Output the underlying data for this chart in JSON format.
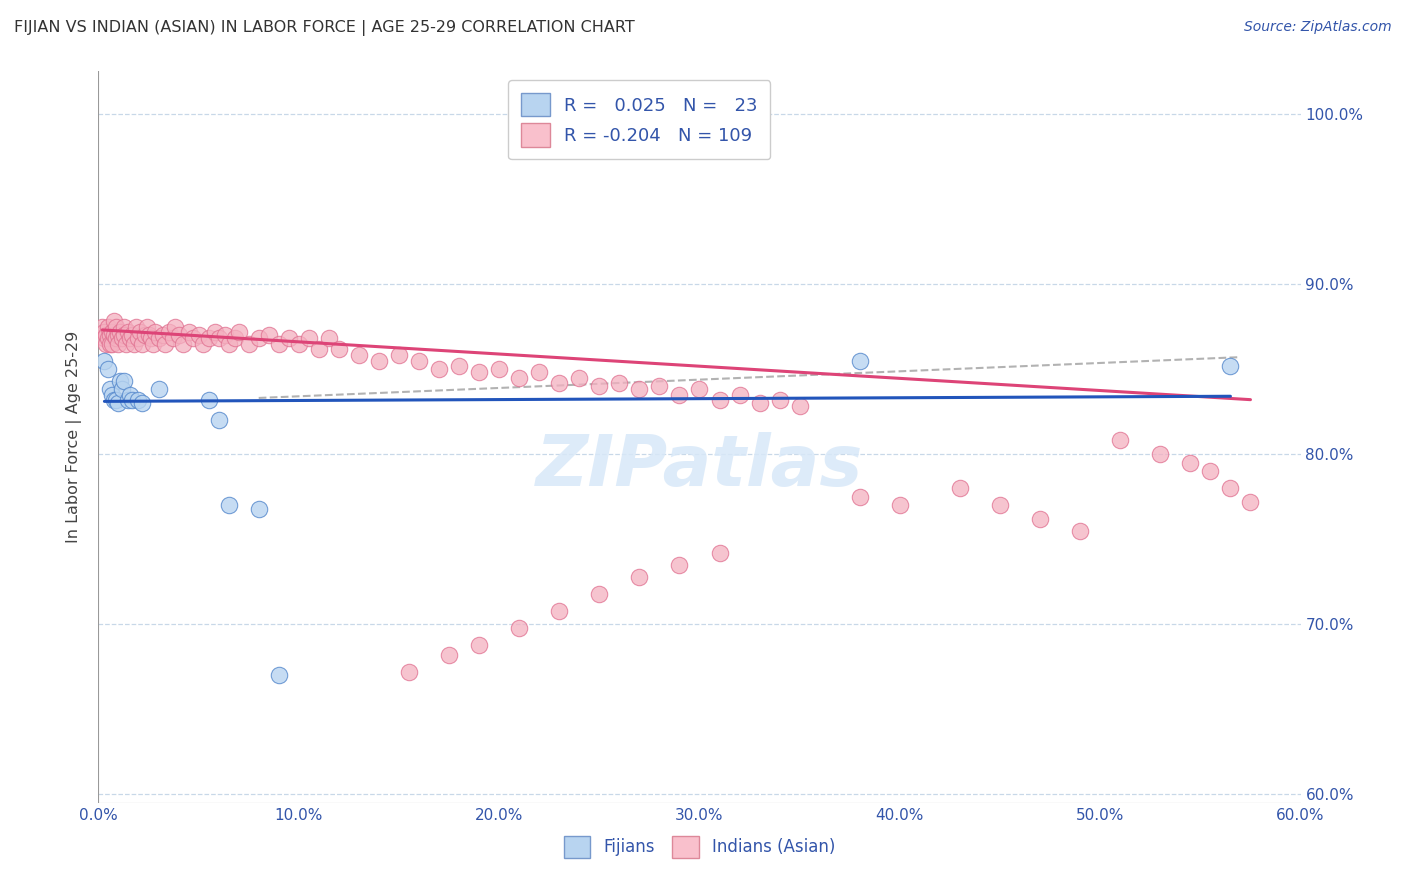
{
  "title": "FIJIAN VS INDIAN (ASIAN) IN LABOR FORCE | AGE 25-29 CORRELATION CHART",
  "source": "Source: ZipAtlas.com",
  "ylabel_label": "In Labor Force | Age 25-29",
  "xlim": [
    0.0,
    0.6
  ],
  "ylim": [
    0.595,
    1.025
  ],
  "xticks": [
    0.0,
    0.1,
    0.2,
    0.3,
    0.4,
    0.5,
    0.6
  ],
  "yticks_right": [
    0.6,
    0.7,
    0.8,
    0.9,
    1.0
  ],
  "fijians_R": 0.025,
  "fijians_N": 23,
  "indians_R": -0.204,
  "indians_N": 109,
  "fijian_scatter_color": "#b8d4f0",
  "fijian_edge_color": "#5588cc",
  "indian_scatter_color": "#f4b0c0",
  "indian_edge_color": "#e07090",
  "fijian_line_color": "#2255bb",
  "indian_line_color": "#dd4477",
  "ref_line_color": "#aaaaaa",
  "grid_color": "#c8d8e8",
  "bg_color": "#ffffff",
  "title_color": "#333333",
  "axis_color": "#3355aa",
  "watermark": "ZIPatlas",
  "watermark_color": "#d8e8f8",
  "fijians_x": [
    0.003,
    0.005,
    0.006,
    0.007,
    0.008,
    0.009,
    0.01,
    0.011,
    0.012,
    0.013,
    0.015,
    0.016,
    0.017,
    0.02,
    0.022,
    0.03,
    0.055,
    0.06,
    0.065,
    0.08,
    0.09,
    0.38,
    0.565
  ],
  "fijians_y": [
    0.855,
    0.85,
    0.838,
    0.835,
    0.832,
    0.832,
    0.83,
    0.843,
    0.838,
    0.843,
    0.832,
    0.835,
    0.832,
    0.832,
    0.83,
    0.838,
    0.832,
    0.82,
    0.77,
    0.768,
    0.67,
    0.855,
    0.852
  ],
  "indians_x": [
    0.002,
    0.003,
    0.003,
    0.004,
    0.004,
    0.005,
    0.005,
    0.006,
    0.006,
    0.007,
    0.007,
    0.008,
    0.008,
    0.009,
    0.009,
    0.01,
    0.01,
    0.011,
    0.012,
    0.013,
    0.013,
    0.014,
    0.015,
    0.016,
    0.017,
    0.018,
    0.019,
    0.02,
    0.021,
    0.022,
    0.023,
    0.024,
    0.025,
    0.026,
    0.027,
    0.028,
    0.03,
    0.032,
    0.033,
    0.035,
    0.037,
    0.038,
    0.04,
    0.042,
    0.045,
    0.047,
    0.05,
    0.052,
    0.055,
    0.058,
    0.06,
    0.063,
    0.065,
    0.068,
    0.07,
    0.075,
    0.08,
    0.085,
    0.09,
    0.095,
    0.1,
    0.105,
    0.11,
    0.115,
    0.12,
    0.13,
    0.14,
    0.15,
    0.16,
    0.17,
    0.18,
    0.19,
    0.2,
    0.21,
    0.22,
    0.23,
    0.24,
    0.25,
    0.26,
    0.27,
    0.28,
    0.29,
    0.3,
    0.31,
    0.32,
    0.33,
    0.34,
    0.35,
    0.38,
    0.4,
    0.43,
    0.45,
    0.47,
    0.49,
    0.51,
    0.53,
    0.545,
    0.555,
    0.565,
    0.575,
    0.31,
    0.29,
    0.27,
    0.25,
    0.23,
    0.21,
    0.19,
    0.175,
    0.155
  ],
  "indians_y": [
    0.875,
    0.872,
    0.868,
    0.87,
    0.865,
    0.868,
    0.875,
    0.87,
    0.865,
    0.872,
    0.865,
    0.87,
    0.878,
    0.868,
    0.875,
    0.87,
    0.865,
    0.872,
    0.868,
    0.875,
    0.87,
    0.865,
    0.872,
    0.868,
    0.87,
    0.865,
    0.875,
    0.868,
    0.872,
    0.865,
    0.87,
    0.875,
    0.87,
    0.868,
    0.865,
    0.872,
    0.868,
    0.87,
    0.865,
    0.872,
    0.868,
    0.875,
    0.87,
    0.865,
    0.872,
    0.868,
    0.87,
    0.865,
    0.868,
    0.872,
    0.868,
    0.87,
    0.865,
    0.868,
    0.872,
    0.865,
    0.868,
    0.87,
    0.865,
    0.868,
    0.865,
    0.868,
    0.862,
    0.868,
    0.862,
    0.858,
    0.855,
    0.858,
    0.855,
    0.85,
    0.852,
    0.848,
    0.85,
    0.845,
    0.848,
    0.842,
    0.845,
    0.84,
    0.842,
    0.838,
    0.84,
    0.835,
    0.838,
    0.832,
    0.835,
    0.83,
    0.832,
    0.828,
    0.775,
    0.77,
    0.78,
    0.77,
    0.762,
    0.755,
    0.808,
    0.8,
    0.795,
    0.79,
    0.78,
    0.772,
    0.742,
    0.735,
    0.728,
    0.718,
    0.708,
    0.698,
    0.688,
    0.682,
    0.672
  ],
  "ref_line_x": [
    0.08,
    0.57
  ],
  "ref_line_y": [
    0.833,
    0.857
  ],
  "fijian_trendline_x": [
    0.003,
    0.565
  ],
  "fijian_trendline_y": [
    0.831,
    0.834
  ],
  "indian_trendline_x": [
    0.002,
    0.575
  ],
  "indian_trendline_y": [
    0.873,
    0.832
  ]
}
